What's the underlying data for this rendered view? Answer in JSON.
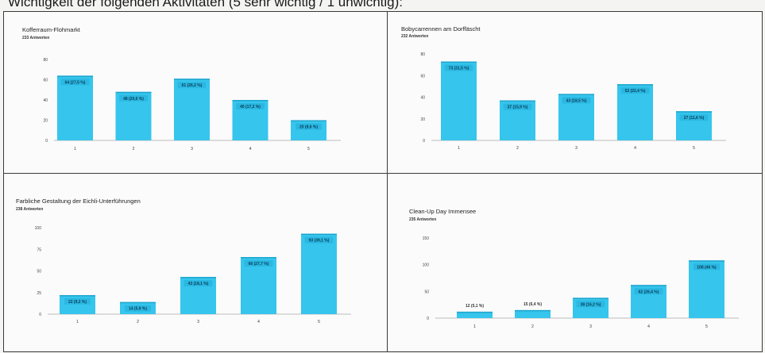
{
  "heading": "Wichtigkeit der folgenden Aktivitäten (5 sehr wichtig / 1 unwichtig):",
  "colors": {
    "bar": "#36c5ec",
    "bar_dark": "#1fa6cf",
    "label_bg": "#2ab8e2",
    "axis": "#bdbdbd"
  },
  "chart_data": [
    {
      "type": "bar",
      "title": "Kofferraum-Flohmarkt",
      "subtitle": "233 Antworten",
      "categories": [
        "1",
        "2",
        "3",
        "4",
        "5"
      ],
      "values": [
        64,
        48,
        61,
        40,
        20
      ],
      "data_labels": [
        "64 (27,5 %)",
        "48 (20,6 %)",
        "61 (26,2 %)",
        "40 (17,2 %)",
        "20 (8,6 %)"
      ],
      "yticks": [
        0,
        20,
        40,
        60,
        80
      ],
      "ylim": [
        0,
        80
      ]
    },
    {
      "type": "bar",
      "title": "Bobycarrennen am Dorffäscht",
      "subtitle": "232 Antworten",
      "categories": [
        "1",
        "2",
        "3",
        "4",
        "5"
      ],
      "values": [
        73,
        37,
        43,
        52,
        27
      ],
      "data_labels": [
        "73 (31,5 %)",
        "37 (15,9 %)",
        "43 (18,5 %)",
        "52 (22,4 %)",
        "27 (11,6 %)"
      ],
      "yticks": [
        0,
        20,
        40,
        60,
        80
      ],
      "ylim": [
        0,
        80
      ]
    },
    {
      "type": "bar",
      "title": "Farbliche Gestaltung der Eichli-Unterführungen",
      "subtitle": "238 Antworten",
      "categories": [
        "1",
        "2",
        "3",
        "4",
        "5"
      ],
      "values": [
        22,
        14,
        43,
        66,
        93
      ],
      "data_labels": [
        "22 (9,2 %)",
        "14 (5,9 %)",
        "43 (18,1 %)",
        "66 (27,7 %)",
        "93 (39,1 %)"
      ],
      "yticks": [
        0,
        25,
        50,
        75,
        100
      ],
      "ylim": [
        0,
        100
      ]
    },
    {
      "type": "bar",
      "title": "Clean-Up Day Immensee",
      "subtitle": "235 Antworten",
      "categories": [
        "1",
        "2",
        "3",
        "4",
        "5"
      ],
      "values": [
        12,
        15,
        38,
        62,
        108
      ],
      "data_labels": [
        "12 (5,1 %)",
        "15 (6,4 %)",
        "38 (16,2 %)",
        "62 (26,4 %)",
        "108 (46 %)"
      ],
      "yticks": [
        0,
        50,
        100,
        150
      ],
      "ylim": [
        0,
        150
      ]
    }
  ]
}
